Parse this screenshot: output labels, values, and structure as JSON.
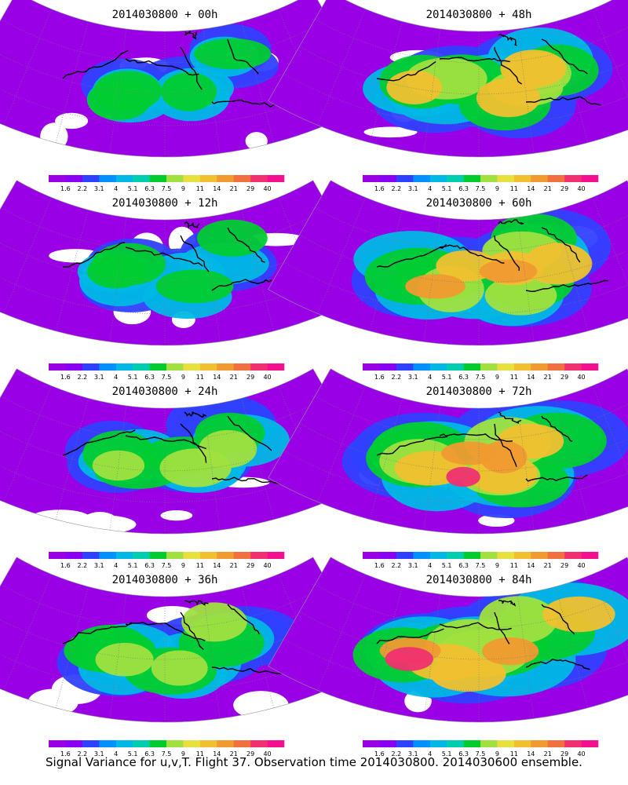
{
  "panels": [
    {
      "title": "2014030800  +  00h",
      "column": 0,
      "row": 0,
      "intensity": 0.15
    },
    {
      "title": "2014030800  +  48h",
      "column": 1,
      "row": 0,
      "intensity": 0.55
    },
    {
      "title": "2014030800  +  12h",
      "column": 0,
      "row": 1,
      "intensity": 0.22
    },
    {
      "title": "2014030800  +  60h",
      "column": 1,
      "row": 1,
      "intensity": 0.62
    },
    {
      "title": "2014030800  +  24h",
      "column": 0,
      "row": 2,
      "intensity": 0.32
    },
    {
      "title": "2014030800  +  72h",
      "column": 1,
      "row": 2,
      "intensity": 0.72
    },
    {
      "title": "2014030800  +  36h",
      "column": 0,
      "row": 3,
      "intensity": 0.42
    },
    {
      "title": "2014030800  +  84h",
      "column": 1,
      "row": 3,
      "intensity": 0.8
    }
  ],
  "colorbar": {
    "labels": [
      "1.6",
      "2.2",
      "3.1",
      "4",
      "5.1",
      "6.3",
      "7.5",
      "9",
      "11",
      "14",
      "21",
      "29",
      "40"
    ],
    "colors": [
      "#9a00e6",
      "#8a00f0",
      "#3040ff",
      "#0090ff",
      "#00b8e6",
      "#00ccb0",
      "#00cc30",
      "#a0e040",
      "#e8e040",
      "#f0c030",
      "#f09a30",
      "#f07040",
      "#f03070",
      "#f01090"
    ]
  },
  "footer": "Signal Variance for u,v,T. Flight 37. Observation time 2014030800. 2014030600 ensemble."
}
